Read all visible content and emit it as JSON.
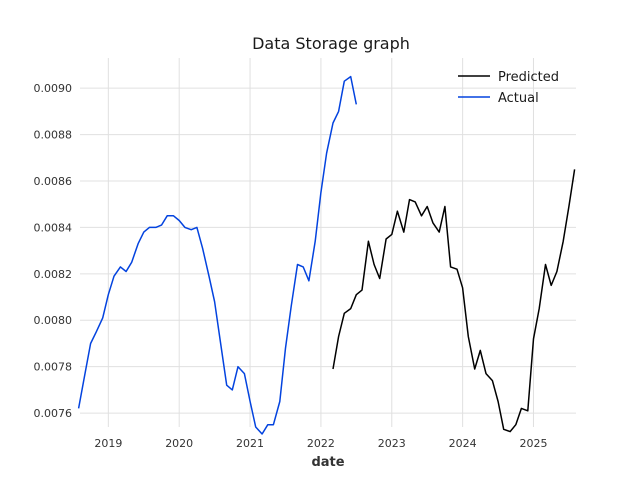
{
  "chart_data": {
    "type": "line",
    "title": "Data Storage graph",
    "xlabel": "date",
    "ylabel": "",
    "x_ticks": [
      "2019",
      "2020",
      "2021",
      "2022",
      "2023",
      "2024",
      "2025"
    ],
    "y_ticks": [
      "0.0076",
      "0.0078",
      "0.0080",
      "0.0082",
      "0.0084",
      "0.0086",
      "0.0088",
      "0.0090"
    ],
    "xlim": [
      2018.6,
      2025.6
    ],
    "ylim": [
      0.00754,
      0.00913
    ],
    "grid": true,
    "legend_position": "top-right",
    "series": [
      {
        "name": "Predicted",
        "color": "#000000",
        "x": [
          2022.17,
          2022.25,
          2022.33,
          2022.42,
          2022.5,
          2022.58,
          2022.67,
          2022.75,
          2022.83,
          2022.92,
          2023.0,
          2023.08,
          2023.17,
          2023.25,
          2023.33,
          2023.42,
          2023.5,
          2023.58,
          2023.67,
          2023.75,
          2023.83,
          2023.92,
          2024.0,
          2024.08,
          2024.17,
          2024.25,
          2024.33,
          2024.42,
          2024.5,
          2024.58,
          2024.67,
          2024.75,
          2024.83,
          2024.92,
          2025.0,
          2025.08,
          2025.17,
          2025.25,
          2025.33,
          2025.42,
          2025.5,
          2025.58
        ],
        "values": [
          0.00779,
          0.00793,
          0.00803,
          0.00805,
          0.00811,
          0.00813,
          0.00834,
          0.00824,
          0.00818,
          0.00835,
          0.00837,
          0.00847,
          0.00838,
          0.00852,
          0.00851,
          0.00845,
          0.00849,
          0.00842,
          0.00838,
          0.00849,
          0.00823,
          0.00822,
          0.00814,
          0.00793,
          0.00779,
          0.00787,
          0.00777,
          0.00774,
          0.00765,
          0.00753,
          0.00752,
          0.00755,
          0.00762,
          0.00761,
          0.00792,
          0.00805,
          0.00824,
          0.00815,
          0.00821,
          0.00834,
          0.00849,
          0.00865
        ]
      },
      {
        "name": "Actual",
        "color": "#0343df",
        "x": [
          2018.58,
          2018.67,
          2018.75,
          2018.83,
          2018.92,
          2019.0,
          2019.08,
          2019.17,
          2019.25,
          2019.33,
          2019.42,
          2019.5,
          2019.58,
          2019.67,
          2019.75,
          2019.83,
          2019.92,
          2020.0,
          2020.08,
          2020.17,
          2020.25,
          2020.33,
          2020.42,
          2020.5,
          2020.58,
          2020.67,
          2020.75,
          2020.83,
          2020.92,
          2021.0,
          2021.08,
          2021.17,
          2021.25,
          2021.33,
          2021.42,
          2021.5,
          2021.58,
          2021.67,
          2021.75,
          2021.83,
          2021.92,
          2022.0,
          2022.08,
          2022.17,
          2022.25,
          2022.33,
          2022.42,
          2022.5
        ],
        "values": [
          0.00762,
          0.00777,
          0.0079,
          0.00795,
          0.00801,
          0.00811,
          0.00819,
          0.00823,
          0.00821,
          0.00825,
          0.00833,
          0.00838,
          0.0084,
          0.0084,
          0.00841,
          0.00845,
          0.00845,
          0.00843,
          0.0084,
          0.00839,
          0.0084,
          0.00831,
          0.00819,
          0.00808,
          0.00791,
          0.00772,
          0.0077,
          0.0078,
          0.00777,
          0.00765,
          0.00754,
          0.00751,
          0.00755,
          0.00755,
          0.00765,
          0.00788,
          0.00806,
          0.00824,
          0.00823,
          0.00817,
          0.00834,
          0.00855,
          0.00872,
          0.00885,
          0.0089,
          0.00903,
          0.00905,
          0.00893
        ]
      }
    ]
  }
}
